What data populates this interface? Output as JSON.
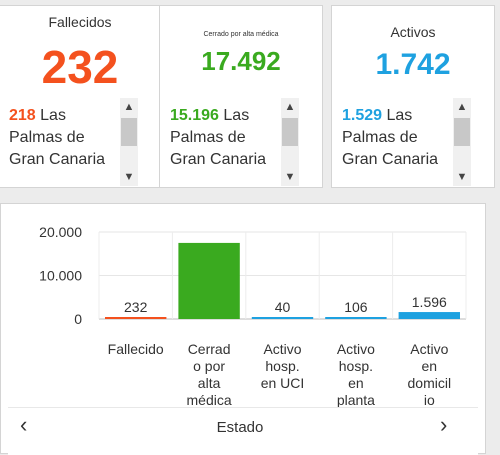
{
  "cards": [
    {
      "title": "Fallecidos",
      "value": "232",
      "color": "#f4511e",
      "list_number": "218",
      "list_text": "Las Palmas de Gran Canaria"
    },
    {
      "title": "Cerrado por alta médica",
      "value": "17.492",
      "color": "#3aaa1f",
      "list_number": "15.196",
      "list_text": "Las Palmas de Gran Canaria"
    },
    {
      "title": "Activos",
      "value": "1.742",
      "color": "#1ea1e0",
      "list_number": "1.529",
      "list_text": "Las Palmas de Gran Canaria"
    }
  ],
  "scroll_icons": {
    "up": "chevron-up-icon",
    "down": "chevron-down-icon"
  },
  "chart_data": {
    "type": "bar",
    "categories": [
      [
        "Fallecido"
      ],
      [
        "Cerrad",
        "o por",
        "alta",
        "médica"
      ],
      [
        "Activo",
        "hosp.",
        "en UCI"
      ],
      [
        "Activo",
        "hosp.",
        "en",
        "planta"
      ],
      [
        "Activo",
        "en",
        "domicil",
        "io"
      ]
    ],
    "values": [
      232,
      17492,
      40,
      106,
      1596
    ],
    "value_labels": [
      "232",
      "",
      "40",
      "106",
      "1.596"
    ],
    "colors": [
      "#f4511e",
      "#3aaa1f",
      "#1ea1e0",
      "#1ea1e0",
      "#1ea1e0"
    ],
    "yticks": [
      0,
      10000,
      20000
    ],
    "ytick_labels": [
      "0",
      "10.000",
      "20.000"
    ],
    "ylim": [
      0,
      20000
    ],
    "xlabel": "Estado",
    "grid": "y"
  },
  "nav": {
    "prev": "‹",
    "next": "›"
  }
}
